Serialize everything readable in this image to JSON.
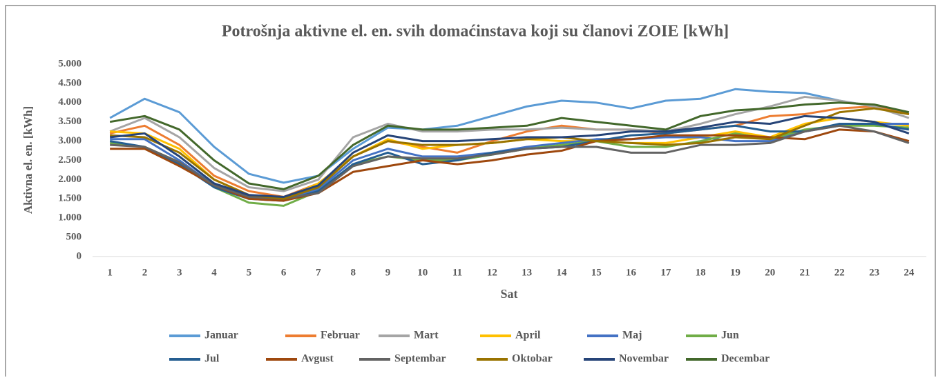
{
  "chart_data": {
    "type": "line",
    "title": "Potrošnja aktivne el. en. svih domaćinstava koji su članovi ZOIE  [kWh]",
    "xlabel": "Sat",
    "ylabel": "Aktivna el. en. [kWh]",
    "categories": [
      "1",
      "2",
      "3",
      "4",
      "5",
      "6",
      "7",
      "8",
      "9",
      "10",
      "11",
      "12",
      "13",
      "14",
      "15",
      "16",
      "17",
      "18",
      "19",
      "20",
      "21",
      "22",
      "23",
      "24"
    ],
    "ylim": [
      0,
      5000
    ],
    "yticks": [
      0,
      500,
      {
        "value": 1000,
        "label": "1.000"
      },
      {
        "value": 1500,
        "label": "1.500"
      },
      {
        "value": 2000,
        "label": "2.000"
      },
      {
        "value": 2500,
        "label": "2.500"
      },
      {
        "value": 3000,
        "label": "3.000"
      },
      {
        "value": 3500,
        "label": "3.500"
      },
      {
        "value": 4000,
        "label": "4.000"
      },
      {
        "value": 4500,
        "label": "4.500"
      },
      {
        "value": 5000,
        "label": "5.000"
      }
    ],
    "grid": false,
    "legend": "bottom",
    "series": [
      {
        "name": "Januar",
        "color": "#5b9bd5",
        "values": [
          3600,
          4100,
          3750,
          2850,
          2150,
          1920,
          2100,
          2800,
          3350,
          3300,
          3400,
          3650,
          3900,
          4050,
          4000,
          3850,
          4050,
          4100,
          4350,
          4280,
          4250,
          4050,
          3900,
          3700
        ]
      },
      {
        "name": "Februar",
        "color": "#ed7d31",
        "values": [
          3200,
          3400,
          2900,
          2100,
          1700,
          1550,
          1900,
          2600,
          3000,
          2850,
          2700,
          3000,
          3250,
          3400,
          3300,
          3300,
          3200,
          3300,
          3400,
          3650,
          3700,
          3850,
          3900,
          3700
        ]
      },
      {
        "name": "Mart",
        "color": "#a5a5a5",
        "values": [
          3250,
          3600,
          3100,
          2300,
          1800,
          1700,
          2000,
          3100,
          3450,
          3250,
          3250,
          3300,
          3300,
          3350,
          3300,
          3300,
          3250,
          3450,
          3700,
          3900,
          4150,
          4050,
          3900,
          3600
        ]
      },
      {
        "name": "April",
        "color": "#ffc000",
        "values": [
          3250,
          3200,
          2800,
          2000,
          1600,
          1500,
          1900,
          2600,
          3050,
          2800,
          2900,
          2950,
          3050,
          3000,
          3000,
          2950,
          2950,
          3100,
          3250,
          3100,
          3450,
          3600,
          3500,
          3400
        ]
      },
      {
        "name": "Maj",
        "color": "#4472c4",
        "values": [
          3050,
          3050,
          2500,
          1850,
          1550,
          1500,
          1750,
          2500,
          2800,
          2600,
          2600,
          2700,
          2850,
          2950,
          3050,
          3050,
          3100,
          3100,
          3000,
          3000,
          3250,
          3400,
          3450,
          3450
        ]
      },
      {
        "name": "Jun",
        "color": "#70ad47",
        "values": [
          2950,
          2850,
          2450,
          1800,
          1400,
          1320,
          1700,
          2400,
          2600,
          2500,
          2500,
          2650,
          2800,
          2900,
          3000,
          2850,
          2850,
          3000,
          3200,
          3050,
          3300,
          3400,
          3400,
          3350
        ]
      },
      {
        "name": "Jul",
        "color": "#255e91",
        "values": [
          3000,
          2850,
          2400,
          1800,
          1500,
          1450,
          1700,
          2400,
          2700,
          2400,
          2500,
          2700,
          2800,
          2850,
          3000,
          3150,
          3200,
          3300,
          3400,
          3250,
          3250,
          3450,
          3450,
          3300
        ]
      },
      {
        "name": "Avgust",
        "color": "#9e480e",
        "values": [
          2800,
          2800,
          2350,
          1850,
          1500,
          1450,
          1650,
          2200,
          2350,
          2500,
          2400,
          2500,
          2650,
          2750,
          3000,
          3050,
          3150,
          3150,
          3150,
          3100,
          3050,
          3300,
          3250,
          3000
        ]
      },
      {
        "name": "Septembar",
        "color": "#636363",
        "values": [
          2900,
          2850,
          2450,
          1850,
          1550,
          1500,
          1650,
          2350,
          2600,
          2550,
          2550,
          2650,
          2800,
          2850,
          2850,
          2700,
          2700,
          2900,
          2900,
          2950,
          3250,
          3400,
          3250,
          2950
        ]
      },
      {
        "name": "Oktobar",
        "color": "#997300",
        "values": [
          3150,
          3100,
          2700,
          2000,
          1600,
          1500,
          1800,
          2600,
          3000,
          2900,
          2900,
          2950,
          3050,
          3100,
          3000,
          2950,
          2900,
          2950,
          3100,
          3050,
          3400,
          3750,
          3850,
          3700
        ]
      },
      {
        "name": "Novembar",
        "color": "#264478",
        "values": [
          3100,
          3200,
          2600,
          1900,
          1600,
          1550,
          1850,
          2700,
          3150,
          3000,
          3000,
          3050,
          3100,
          3100,
          3150,
          3250,
          3250,
          3350,
          3500,
          3450,
          3650,
          3600,
          3500,
          3200
        ]
      },
      {
        "name": "Decembar",
        "color": "#43682b",
        "values": [
          3500,
          3650,
          3300,
          2500,
          1900,
          1750,
          2100,
          2900,
          3400,
          3300,
          3300,
          3350,
          3400,
          3600,
          3500,
          3400,
          3300,
          3650,
          3800,
          3850,
          3950,
          4000,
          3950,
          3750
        ]
      }
    ]
  }
}
